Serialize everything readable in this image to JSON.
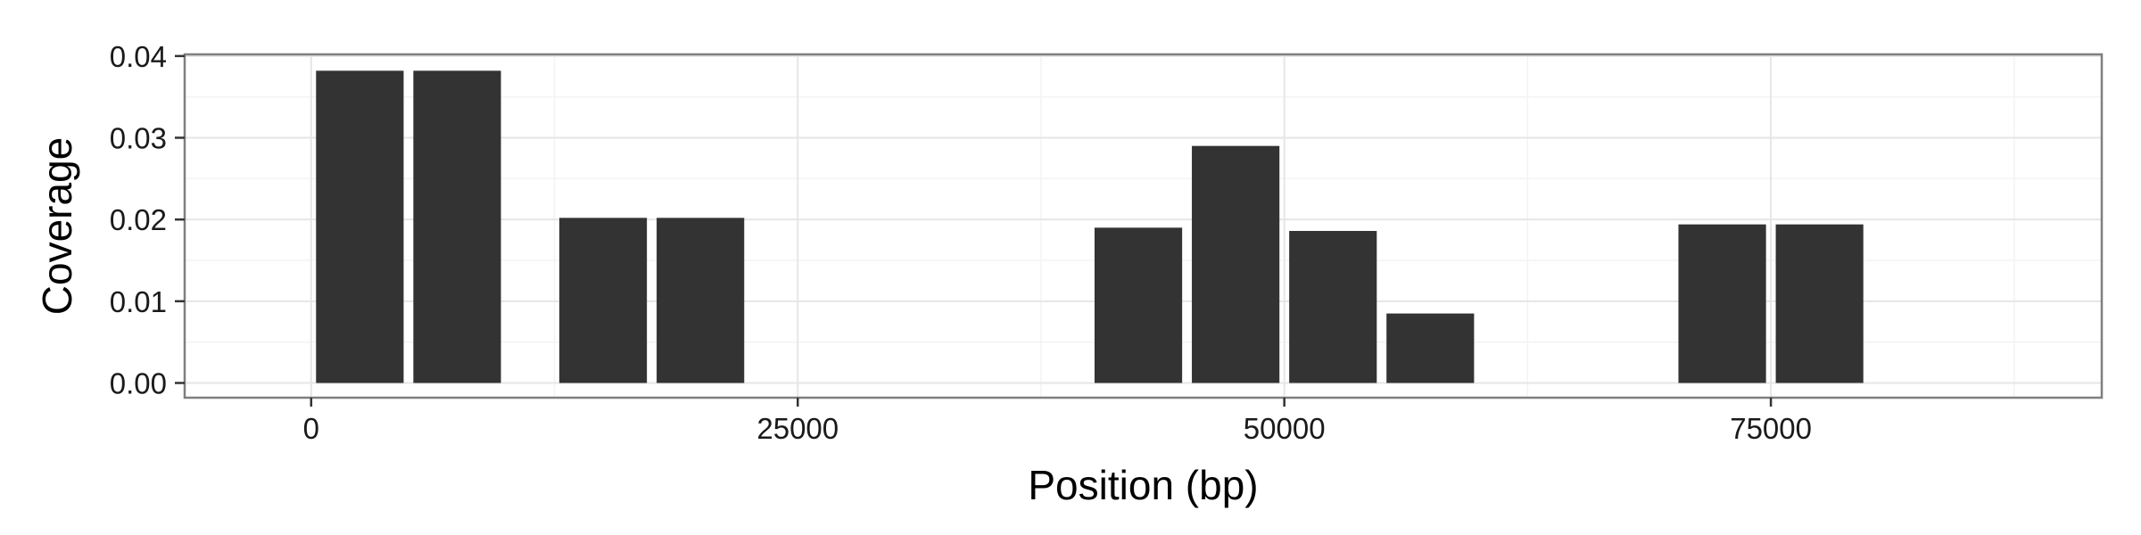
{
  "chart_data": {
    "type": "bar",
    "title": "",
    "xlabel": "Position (bp)",
    "ylabel": "Coverage",
    "xlim": [
      -6500,
      92000
    ],
    "ylim": [
      -0.0018,
      0.0402
    ],
    "x_ticks": [
      0,
      25000,
      50000,
      75000
    ],
    "y_ticks": [
      0.0,
      0.01,
      0.02,
      0.03,
      0.04
    ],
    "x_tick_labels": [
      "0",
      "25000",
      "50000",
      "75000"
    ],
    "y_tick_labels": [
      "0.00",
      "0.01",
      "0.02",
      "0.03",
      "0.04"
    ],
    "bar_width": 4500,
    "bars": [
      {
        "x": 2500,
        "value": 0.0382
      },
      {
        "x": 7500,
        "value": 0.0382
      },
      {
        "x": 15000,
        "value": 0.0202
      },
      {
        "x": 20000,
        "value": 0.0202
      },
      {
        "x": 42500,
        "value": 0.019
      },
      {
        "x": 47500,
        "value": 0.029
      },
      {
        "x": 52500,
        "value": 0.0186
      },
      {
        "x": 57500,
        "value": 0.0085
      },
      {
        "x": 72500,
        "value": 0.0194
      },
      {
        "x": 77500,
        "value": 0.0194
      }
    ],
    "grid": true,
    "colors": {
      "bar": "#333333",
      "panel_border": "#7f7f7f",
      "grid_major": "#e6e6e6",
      "grid_minor": "#f3f3f3",
      "tick": "#333333"
    }
  }
}
